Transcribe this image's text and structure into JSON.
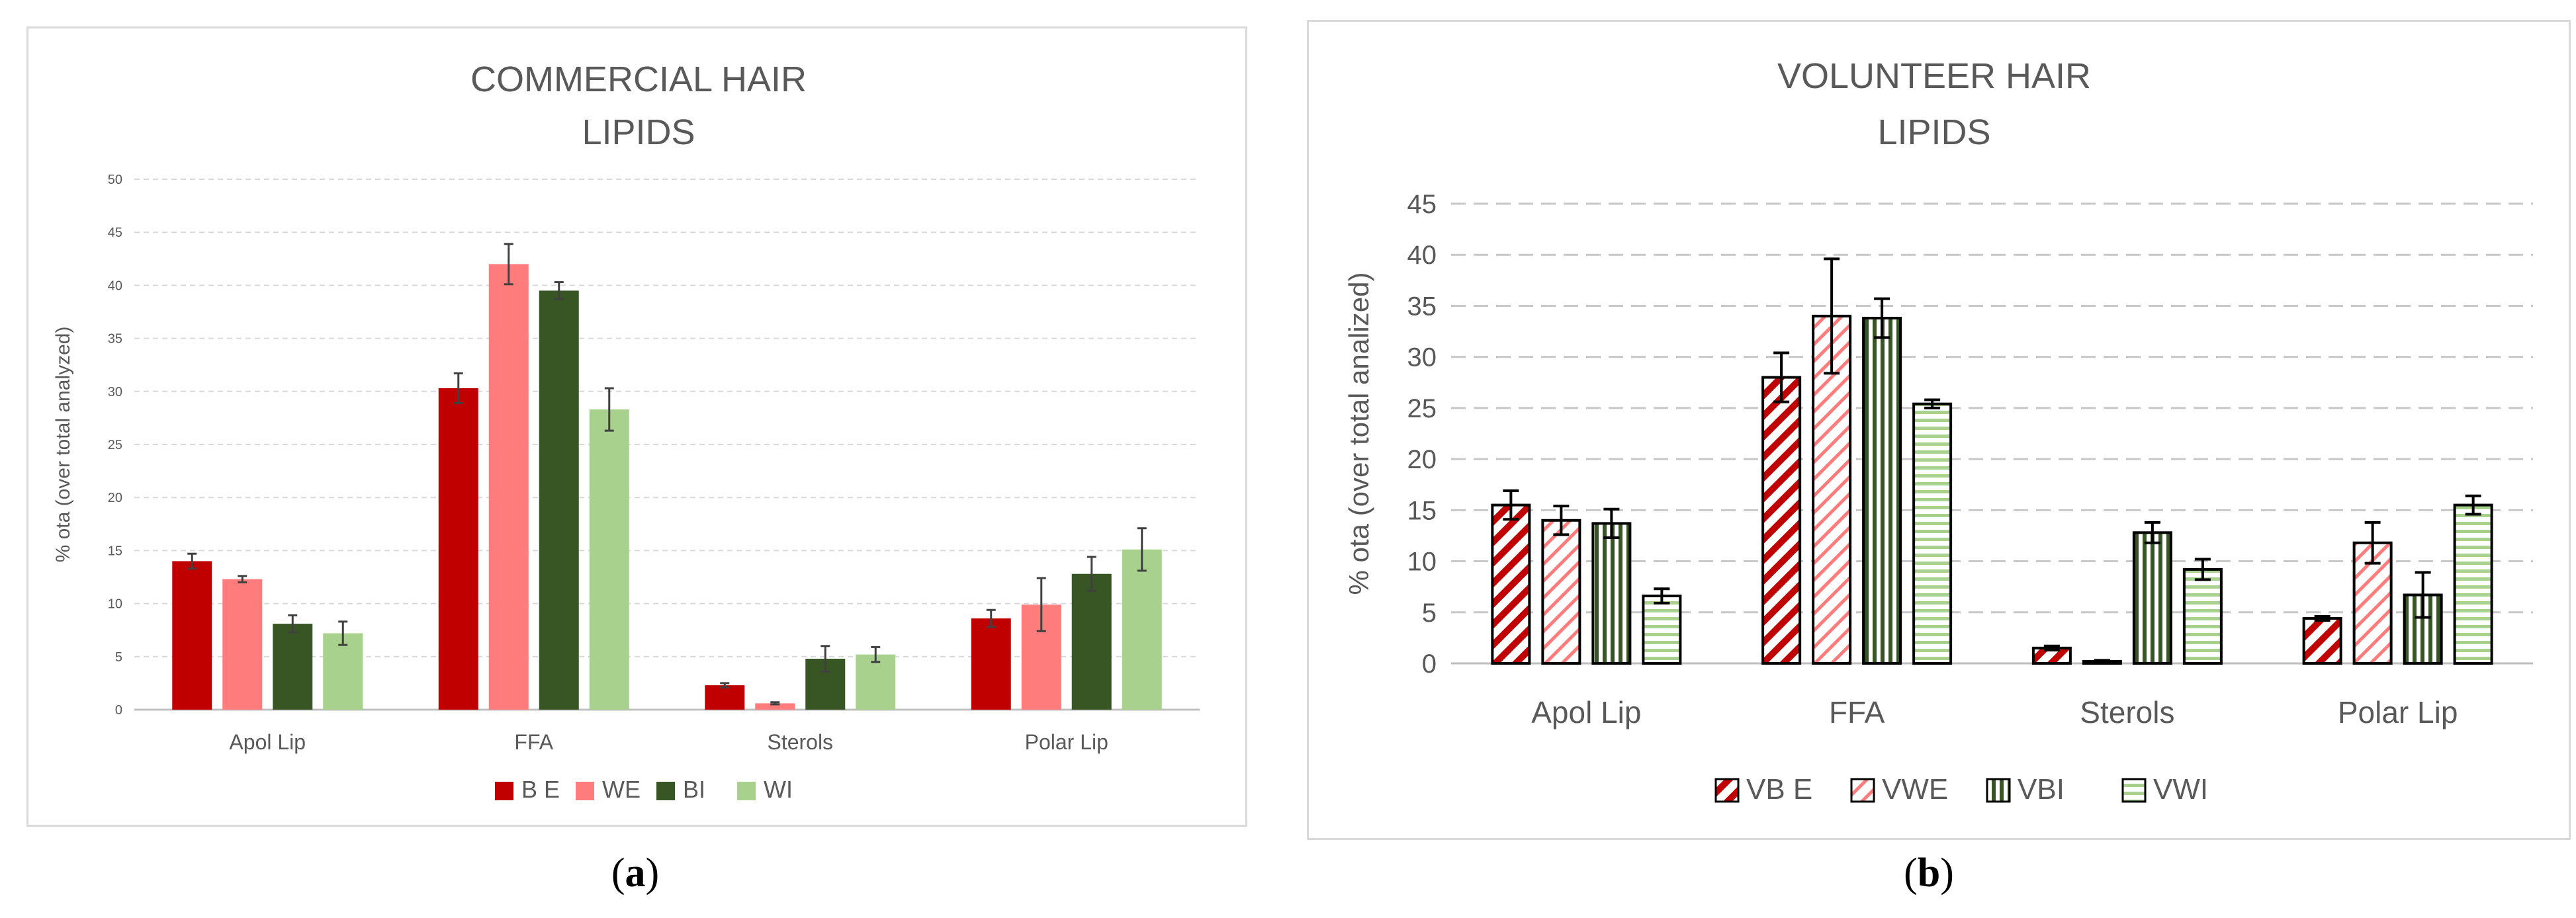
{
  "colors": {
    "BE": "#c00000",
    "WE": "#ff7c7c",
    "BI": "#375623",
    "WI": "#a9d18e",
    "grid": "#d9d9d9",
    "axis_text": "#595959",
    "title_text": "#595959"
  },
  "captions": {
    "a_open": "(",
    "a_letter": "a",
    "a_close": ")",
    "b_open": "(",
    "b_letter": "b",
    "b_close": ")"
  },
  "chart_data": [
    {
      "type": "bar",
      "title_line1": "COMMERCIAL HAIR",
      "title_line2": "LIPIDS",
      "xlabel": "",
      "ylabel": "% ota (over total analyzed)",
      "ylim": [
        0,
        50
      ],
      "yticks": [
        0,
        5,
        10,
        15,
        20,
        25,
        30,
        35,
        40,
        45,
        50
      ],
      "grid": true,
      "legend_position": "bottom",
      "fill": "solid",
      "categories": [
        "Apol Lip",
        "FFA",
        "Sterols",
        "Polar Lip"
      ],
      "series": [
        {
          "name": "B E",
          "color_key": "BE",
          "values": [
            14.0,
            30.3,
            2.3,
            8.6
          ],
          "errors": [
            0.7,
            1.4,
            0.2,
            0.8
          ]
        },
        {
          "name": "WE",
          "color_key": "WE",
          "values": [
            12.3,
            42.0,
            0.6,
            9.9
          ],
          "errors": [
            0.3,
            1.9,
            0.1,
            2.5
          ]
        },
        {
          "name": "BI",
          "color_key": "BI",
          "values": [
            8.1,
            39.5,
            4.8,
            12.8
          ],
          "errors": [
            0.8,
            0.8,
            1.2,
            1.6
          ]
        },
        {
          "name": "WI",
          "color_key": "WI",
          "values": [
            7.2,
            28.3,
            5.2,
            15.1
          ],
          "errors": [
            1.1,
            2.0,
            0.7,
            2.0
          ]
        }
      ]
    },
    {
      "type": "bar",
      "title_line1": "VOLUNTEER HAIR",
      "title_line2": "LIPIDS",
      "xlabel": "",
      "ylabel": "% ota (over total analized)",
      "ylim": [
        0,
        45
      ],
      "yticks": [
        0,
        5,
        10,
        15,
        20,
        25,
        30,
        35,
        40,
        45
      ],
      "grid": true,
      "legend_position": "bottom",
      "fill": "patterned",
      "categories": [
        "Apol Lip",
        "FFA",
        "Sterols",
        "Polar Lip"
      ],
      "series": [
        {
          "name": "VB E",
          "color_key": "BE",
          "pattern": "diag-wide",
          "values": [
            15.5,
            28.0,
            1.5,
            4.4
          ],
          "errors": [
            1.4,
            2.4,
            0.2,
            0.2
          ]
        },
        {
          "name": "VWE",
          "color_key": "WE",
          "pattern": "diag-light",
          "values": [
            14.0,
            34.0,
            0.2,
            11.8
          ],
          "errors": [
            1.4,
            5.6,
            0.1,
            2.0
          ]
        },
        {
          "name": "VBI",
          "color_key": "BI",
          "pattern": "vertical",
          "values": [
            13.7,
            33.8,
            12.8,
            6.7
          ],
          "errors": [
            1.4,
            1.9,
            1.0,
            2.2
          ]
        },
        {
          "name": "VWI",
          "color_key": "WI",
          "pattern": "horizontal",
          "values": [
            6.6,
            25.4,
            9.2,
            15.5
          ],
          "errors": [
            0.7,
            0.4,
            1.0,
            0.9
          ]
        }
      ]
    }
  ]
}
